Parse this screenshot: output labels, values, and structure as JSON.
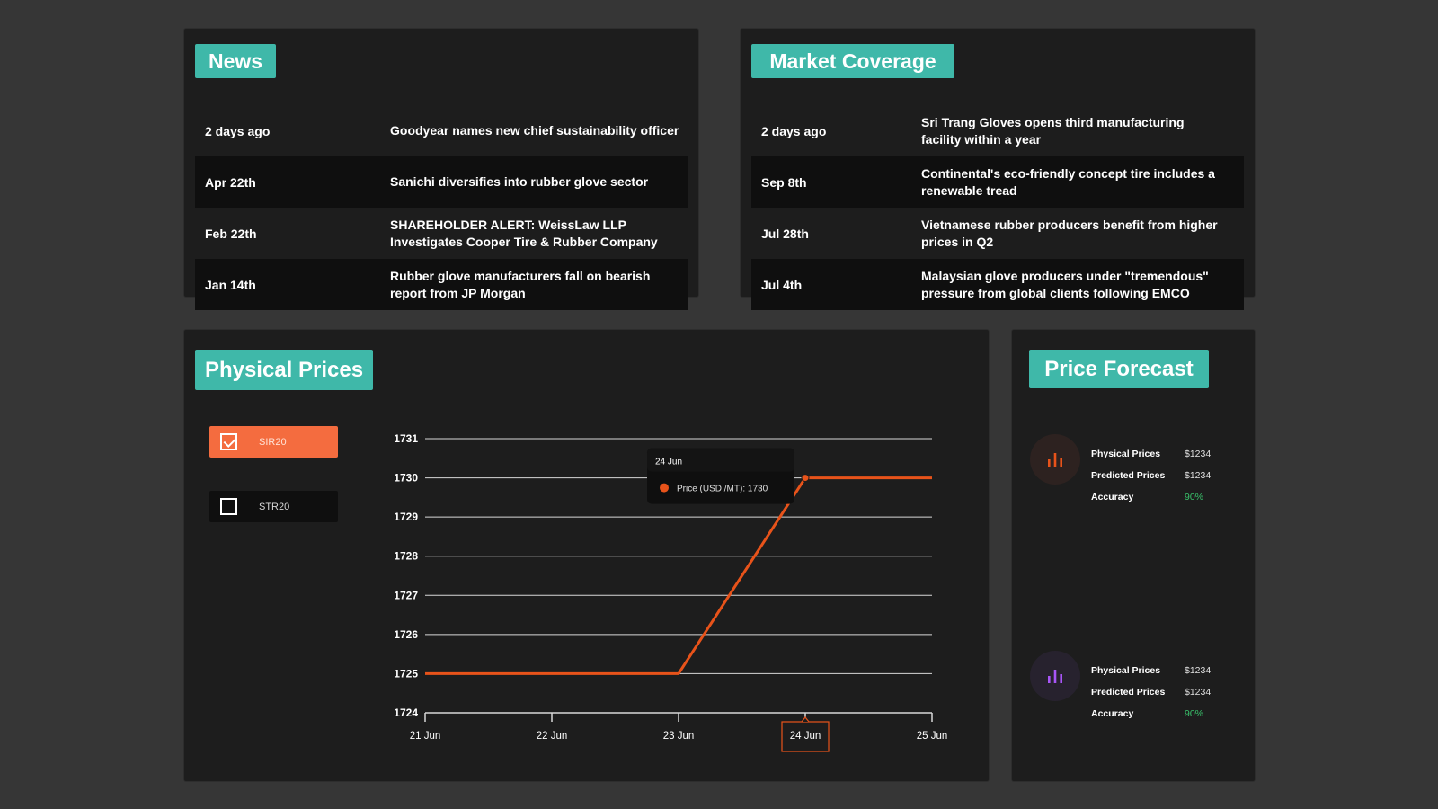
{
  "news": {
    "title": "News",
    "items": [
      {
        "date": "2 days ago",
        "headline": "Goodyear names new chief sustainability officer"
      },
      {
        "date": "Apr 22th",
        "headline": "Sanichi diversifies into rubber glove sector"
      },
      {
        "date": "Feb 22th",
        "headline": "SHAREHOLDER ALERT: WeissLaw LLP Investigates Cooper Tire & Rubber Company"
      },
      {
        "date": "Jan 14th",
        "headline": "Rubber glove manufacturers fall on bearish report from JP Morgan"
      }
    ]
  },
  "market": {
    "title": "Market Coverage",
    "items": [
      {
        "date": "2 days ago",
        "headline": "Sri Trang Gloves opens third manufacturing facility within a year"
      },
      {
        "date": "Sep 8th",
        "headline": "Continental's eco-friendly concept tire includes a renewable tread"
      },
      {
        "date": "Jul 28th",
        "headline": "Vietnamese rubber producers benefit from higher prices in Q2"
      },
      {
        "date": "Jul 4th",
        "headline": "Malaysian glove producers under \"tremendous\" pressure from global clients following EMCO"
      }
    ]
  },
  "physical": {
    "title": "Physical Prices",
    "series_buttons": [
      {
        "label": "SIR20",
        "checked": true
      },
      {
        "label": "STR20",
        "checked": false
      }
    ],
    "tooltip": {
      "title": "24 Jun",
      "line": "Price (USD /MT): 1730"
    },
    "highlighted_x": "24 Jun"
  },
  "chart_data": {
    "type": "line",
    "x": [
      "21 Jun",
      "22 Jun",
      "23 Jun",
      "24 Jun",
      "25 Jun"
    ],
    "series": [
      {
        "name": "SIR20",
        "values": [
          1725,
          1725,
          1725,
          1730,
          1730
        ],
        "color": "#e8531a"
      }
    ],
    "ylim": [
      1724,
      1731
    ],
    "yticks": [
      1724,
      1725,
      1726,
      1727,
      1728,
      1729,
      1730,
      1731
    ],
    "grid": true,
    "title": "",
    "xlabel": "",
    "ylabel": ""
  },
  "forecast": {
    "title": "Price Forecast",
    "items": [
      {
        "icon": "bar-chart-icon",
        "icon_color": "#e8531a",
        "rows": [
          {
            "label": "Physical Prices",
            "value": "$1234"
          },
          {
            "label": "Predicted Prices",
            "value": "$1234"
          },
          {
            "label": "Accuracy",
            "value": "90%"
          }
        ]
      },
      {
        "icon": "bar-chart-icon",
        "icon_color": "#a855f7",
        "rows": [
          {
            "label": "Physical Prices",
            "value": "$1234"
          },
          {
            "label": "Predicted Prices",
            "value": "$1234"
          },
          {
            "label": "Accuracy",
            "value": "90%"
          }
        ]
      }
    ]
  },
  "colors": {
    "accent_teal": "#3fb8a9",
    "accent_orange": "#f46c3f",
    "positive_green": "#39c26b"
  }
}
